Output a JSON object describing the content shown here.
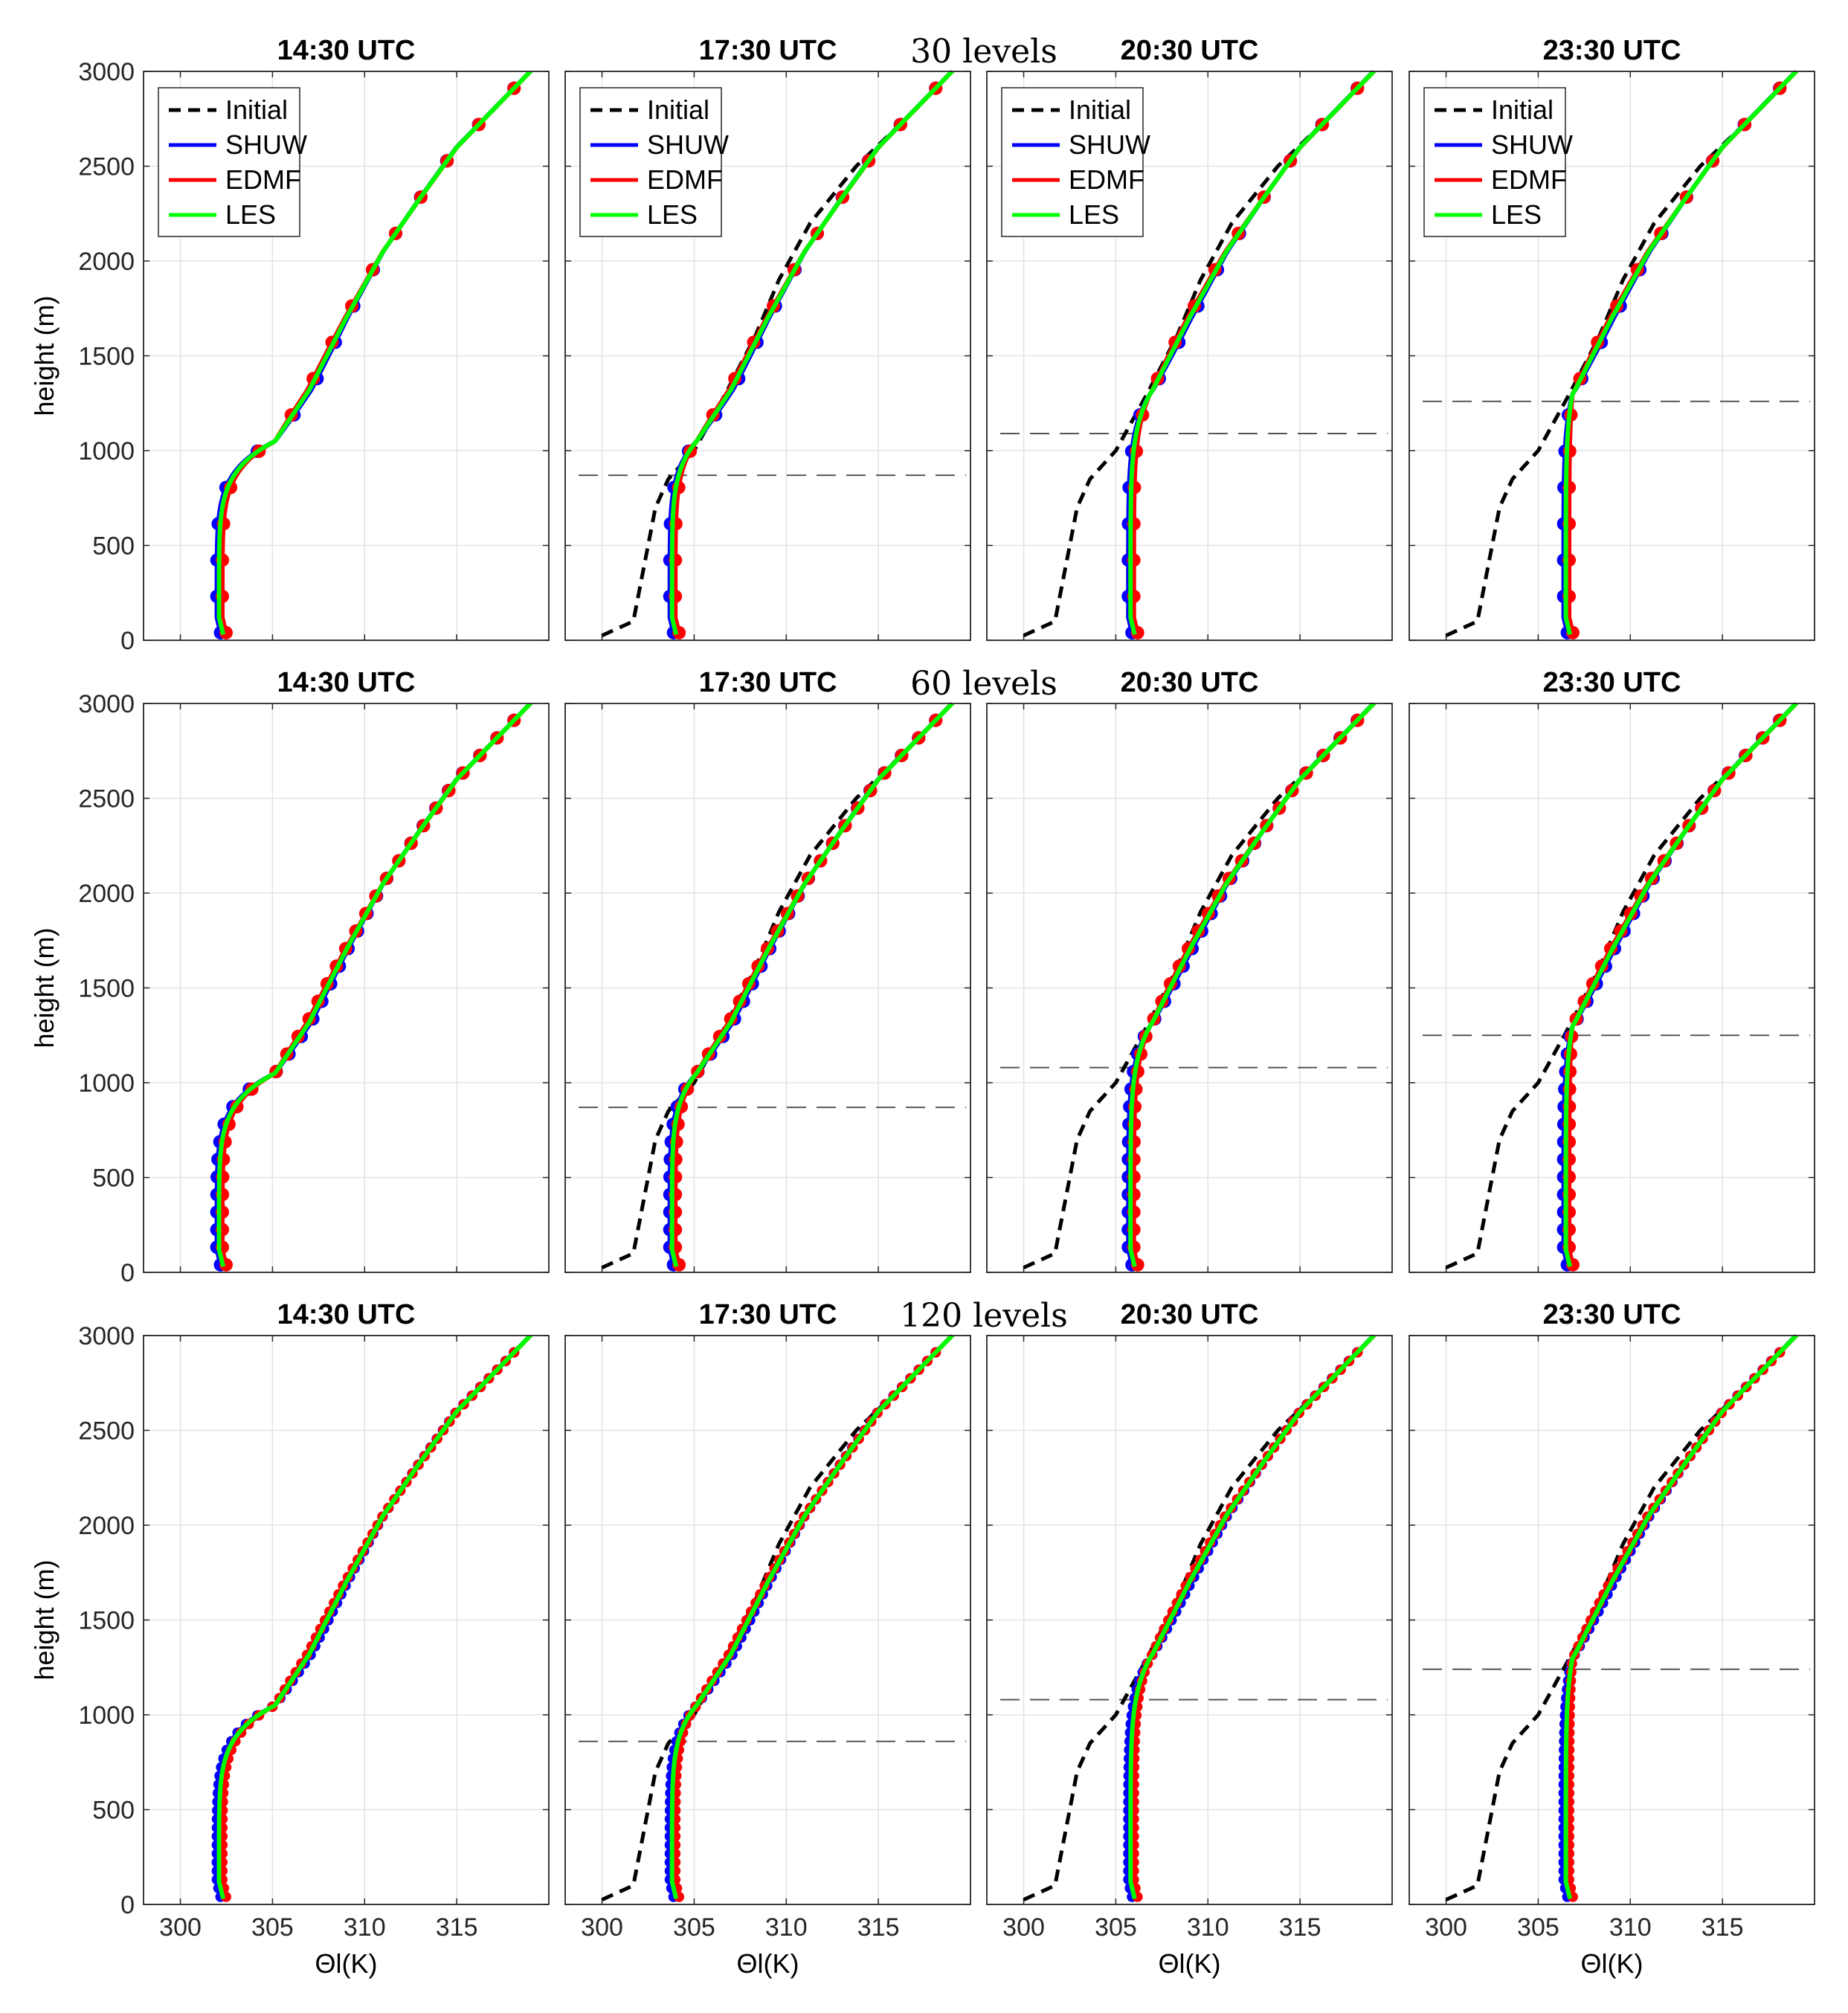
{
  "chart_data": {
    "type": "line",
    "title": "",
    "row_titles": [
      "30 levels",
      "60 levels",
      "120 levels"
    ],
    "column_titles": [
      "14:30 UTC",
      "17:30 UTC",
      "20:30 UTC",
      "23:30 UTC"
    ],
    "xlabel": "Θl(K)",
    "ylabel": "height (m)",
    "xlim": [
      298,
      320
    ],
    "ylim": [
      0,
      3000
    ],
    "x_ticks": [
      300,
      305,
      310,
      315
    ],
    "y_ticks": [
      0,
      500,
      1000,
      1500,
      2000,
      2500,
      3000
    ],
    "grid": true,
    "legend": {
      "entries": [
        "Initial",
        "SHUW",
        "EDMF",
        "LES"
      ],
      "location": "top-left",
      "shown_in": "top row"
    },
    "series_colors": {
      "Initial": "#000000",
      "SHUW": "#0000ff",
      "EDMF": "#ff0000",
      "LES": "#00ff00",
      "PBL": "#555555"
    },
    "initial": {
      "theta": [
        300.0,
        301.7,
        302.9,
        303.6,
        305.0,
        306.7,
        308.3,
        309.6,
        311.3,
        313.8,
        316.5,
        319.0
      ],
      "height": [
        25,
        100,
        700,
        850,
        1000,
        1300,
        1600,
        1900,
        2200,
        2500,
        2750,
        3000
      ]
    },
    "base_free": {
      "theta": [
        305.0,
        307.0,
        309.0,
        311.0,
        313.0,
        315.0,
        319.0
      ],
      "height": [
        1030,
        1320,
        1700,
        2050,
        2330,
        2600,
        3000
      ]
    },
    "panels": [
      {
        "row": 0,
        "col": 0,
        "mixed_theta": 302.1,
        "pbl_height": null,
        "curvy_top": 1050
      },
      {
        "row": 0,
        "col": 1,
        "mixed_theta": 303.8,
        "pbl_height": 870,
        "curvy_top": 1050
      },
      {
        "row": 0,
        "col": 2,
        "mixed_theta": 305.8,
        "pbl_height": 1090,
        "curvy_top": 1300
      },
      {
        "row": 0,
        "col": 3,
        "mixed_theta": 306.5,
        "pbl_height": 1260,
        "curvy_top": 1300
      },
      {
        "row": 1,
        "col": 0,
        "mixed_theta": 302.1,
        "pbl_height": null,
        "curvy_top": 1050
      },
      {
        "row": 1,
        "col": 1,
        "mixed_theta": 303.8,
        "pbl_height": 870,
        "curvy_top": 1050
      },
      {
        "row": 1,
        "col": 2,
        "mixed_theta": 305.8,
        "pbl_height": 1080,
        "curvy_top": 1300
      },
      {
        "row": 1,
        "col": 3,
        "mixed_theta": 306.5,
        "pbl_height": 1250,
        "curvy_top": 1300
      },
      {
        "row": 2,
        "col": 0,
        "mixed_theta": 302.1,
        "pbl_height": null,
        "curvy_top": 1050
      },
      {
        "row": 2,
        "col": 1,
        "mixed_theta": 303.8,
        "pbl_height": 860,
        "curvy_top": 1050
      },
      {
        "row": 2,
        "col": 2,
        "mixed_theta": 305.8,
        "pbl_height": 1080,
        "curvy_top": 1300
      },
      {
        "row": 2,
        "col": 3,
        "mixed_theta": 306.5,
        "pbl_height": 1240,
        "curvy_top": 1300
      }
    ],
    "levels_per_row": [
      16,
      32,
      64
    ]
  }
}
